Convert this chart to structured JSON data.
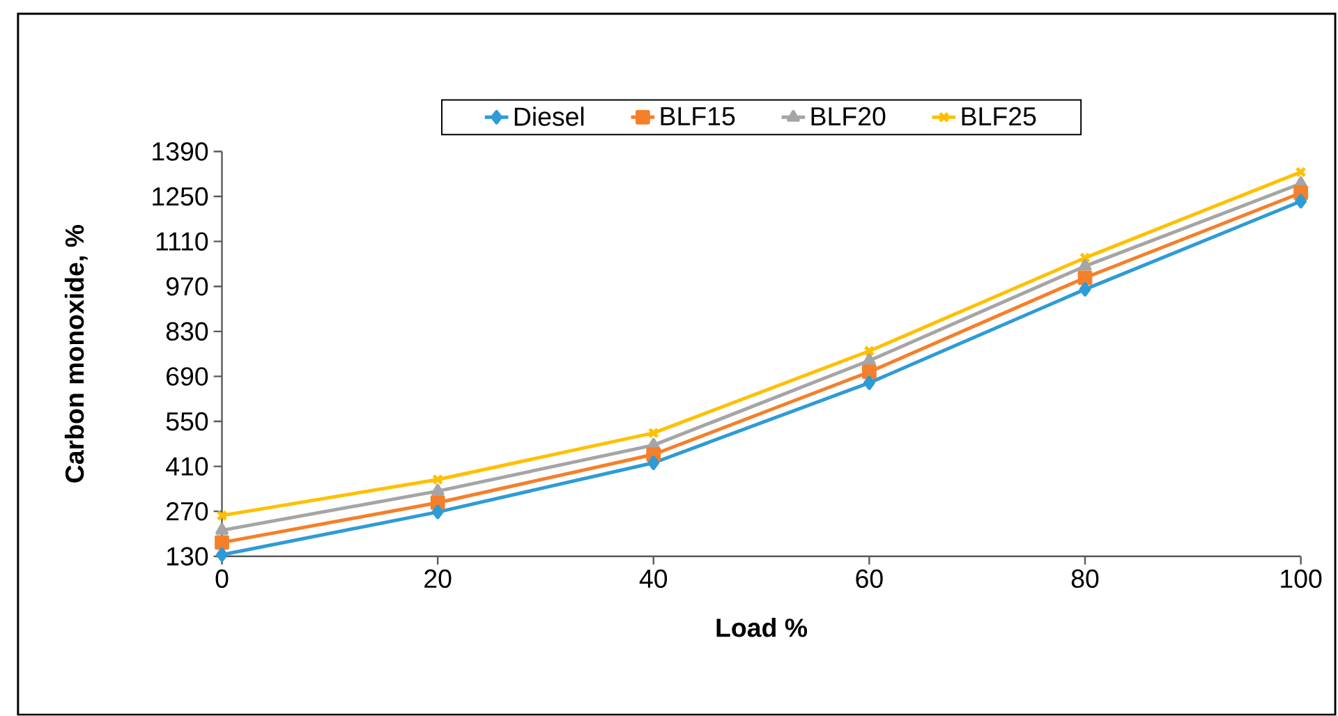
{
  "chart_data": {
    "type": "line",
    "xlabel": "Load %",
    "ylabel": "Carbon monoxide, %",
    "x": [
      0,
      20,
      40,
      60,
      80,
      100
    ],
    "series": [
      {
        "name": "Diesel",
        "color": "#2e9bd6",
        "marker": "diamond",
        "values": [
          135,
          268,
          421,
          670,
          961,
          1235
        ]
      },
      {
        "name": "BLF15",
        "color": "#f57f2a",
        "marker": "square",
        "values": [
          173,
          297,
          447,
          704,
          997,
          1261
        ]
      },
      {
        "name": "BLF20",
        "color": "#a5a5a5",
        "marker": "triangle",
        "values": [
          211,
          333,
          476,
          739,
          1033,
          1290
        ]
      },
      {
        "name": "BLF25",
        "color": "#ffc000",
        "marker": "cross",
        "values": [
          257,
          369,
          514,
          769,
          1059,
          1326
        ]
      }
    ],
    "xlim": [
      0,
      100
    ],
    "xticks": [
      0,
      20,
      40,
      60,
      80,
      100
    ],
    "ylim": [
      130,
      1390
    ],
    "yticks": [
      130,
      270,
      410,
      550,
      690,
      830,
      970,
      1110,
      1250,
      1390
    ],
    "grid": false,
    "legend": "top",
    "line_style": "solid"
  }
}
